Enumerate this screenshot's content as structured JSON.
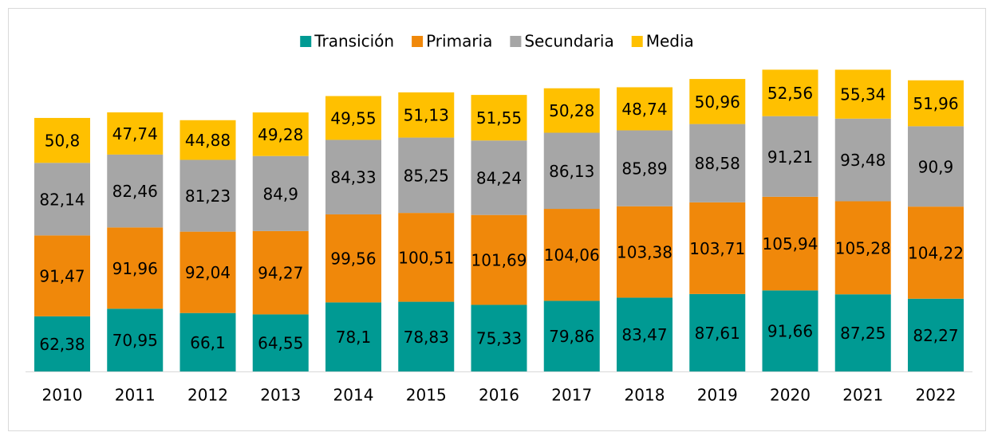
{
  "chart_data": {
    "type": "stacked_bar",
    "categories": [
      "2010",
      "2011",
      "2012",
      "2013",
      "2014",
      "2015",
      "2016",
      "2017",
      "2018",
      "2019",
      "2020",
      "2021",
      "2022"
    ],
    "series": [
      {
        "name": "Transición",
        "color": "#009a93",
        "values": [
          62.38,
          70.95,
          66.1,
          64.55,
          78.1,
          78.83,
          75.33,
          79.86,
          83.47,
          87.61,
          91.66,
          87.25,
          82.27
        ],
        "value_labels": [
          "62,38",
          "70,95",
          "66,1",
          "64,55",
          "78,1",
          "78,83",
          "75,33",
          "79,86",
          "83,47",
          "87,61",
          "91,66",
          "87,25",
          "82,27"
        ]
      },
      {
        "name": "Primaria",
        "color": "#f0880a",
        "values": [
          91.47,
          91.96,
          92.04,
          94.27,
          99.56,
          100.51,
          101.69,
          104.06,
          103.38,
          103.71,
          105.94,
          105.28,
          104.22
        ],
        "value_labels": [
          "91,47",
          "91,96",
          "92,04",
          "94,27",
          "99,56",
          "100,51",
          "101,69",
          "104,06",
          "103,38",
          "103,71",
          "105,94",
          "105,28",
          "104,22"
        ]
      },
      {
        "name": "Secundaria",
        "color": "#a6a6a6",
        "values": [
          82.14,
          82.46,
          81.23,
          84.9,
          84.33,
          85.25,
          84.24,
          86.13,
          85.89,
          88.58,
          91.21,
          93.48,
          90.9
        ],
        "value_labels": [
          "82,14",
          "82,46",
          "81,23",
          "84,9",
          "84,33",
          "85,25",
          "84,24",
          "86,13",
          "85,89",
          "88,58",
          "91,21",
          "93,48",
          "90,9"
        ]
      },
      {
        "name": "Media",
        "color": "#ffc000",
        "values": [
          50.8,
          47.74,
          44.88,
          49.28,
          49.55,
          51.13,
          51.55,
          50.28,
          48.74,
          50.96,
          52.56,
          55.34,
          51.96
        ],
        "value_labels": [
          "50,8",
          "47,74",
          "44,88",
          "49,28",
          "49,55",
          "51,13",
          "51,55",
          "50,28",
          "48,74",
          "50,96",
          "52,56",
          "55,34",
          "51,96"
        ]
      }
    ]
  }
}
